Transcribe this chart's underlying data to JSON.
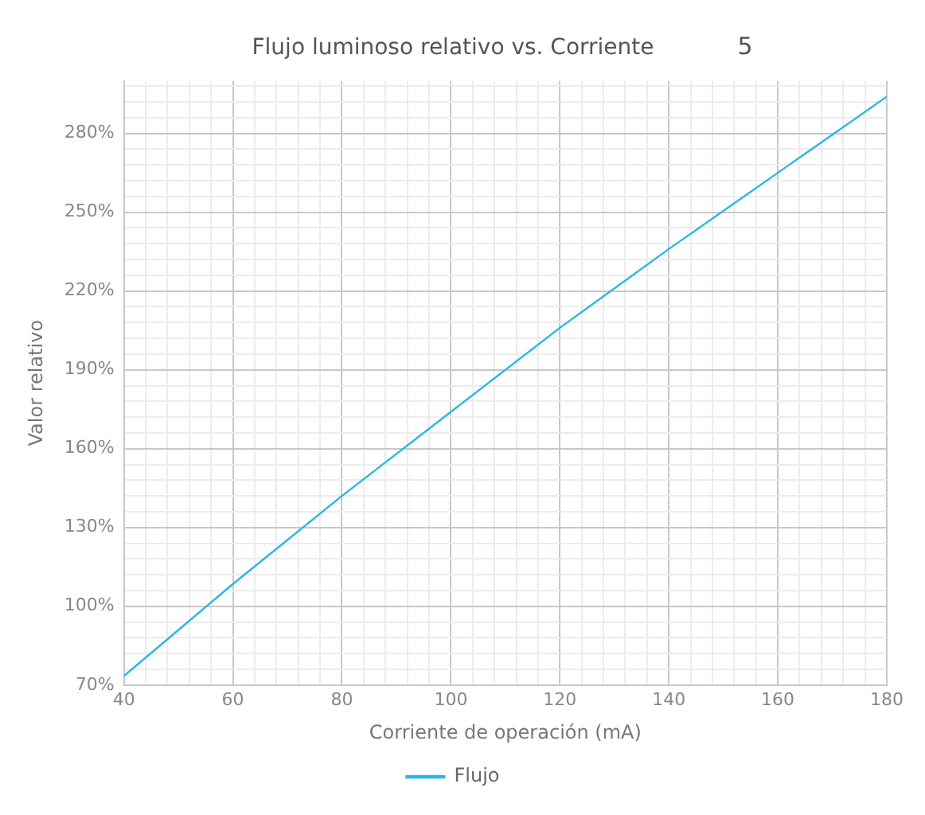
{
  "chart_data": {
    "type": "line",
    "title": "Flujo luminoso relativo vs. Corriente",
    "xlabel": "Corriente de operación (mA)",
    "ylabel": "Valor relativo",
    "annotations": [
      "5"
    ],
    "x": [
      40,
      60,
      80,
      100,
      120,
      140,
      160,
      180
    ],
    "series": [
      {
        "name": "Flujo",
        "color": "#29b6e8",
        "values": [
          73.5,
          108.5,
          142,
          174,
          206,
          236,
          265,
          294
        ]
      }
    ],
    "xlim": [
      40,
      180
    ],
    "xticks": [
      40,
      {
        "value": 44,
        "label": null
      },
      {
        "value": 48,
        "label": null
      },
      {
        "value": 52,
        "label": null
      },
      {
        "value": 56,
        "label": null
      },
      60,
      {
        "value": 64,
        "label": null
      },
      {
        "value": 68,
        "label": null
      },
      {
        "value": 72,
        "label": null
      },
      {
        "value": 76,
        "label": null
      },
      80,
      {
        "value": 84,
        "label": null
      },
      {
        "value": 88,
        "label": null
      },
      {
        "value": 92,
        "label": null
      },
      {
        "value": 96,
        "label": null
      },
      100,
      {
        "value": 104,
        "label": null
      },
      {
        "value": 108,
        "label": null
      },
      {
        "value": 112,
        "label": null
      },
      {
        "value": 116,
        "label": null
      },
      120,
      {
        "value": 124,
        "label": null
      },
      {
        "value": 128,
        "label": null
      },
      {
        "value": 132,
        "label": null
      },
      {
        "value": 136,
        "label": null
      },
      140,
      {
        "value": 144,
        "label": null
      },
      {
        "value": 148,
        "label": null
      },
      {
        "value": 152,
        "label": null
      },
      {
        "value": 156,
        "label": null
      },
      160,
      {
        "value": 164,
        "label": null
      },
      {
        "value": 168,
        "label": null
      },
      {
        "value": 172,
        "label": null
      },
      {
        "value": 176,
        "label": null
      },
      180
    ],
    "ylim": [
      70,
      300
    ],
    "yticks": [
      {
        "value": 70,
        "label": "70%"
      },
      {
        "value": 76,
        "label": null
      },
      {
        "value": 82,
        "label": null
      },
      {
        "value": 88,
        "label": null
      },
      {
        "value": 94,
        "label": null
      },
      {
        "value": 100,
        "label": "100%"
      },
      {
        "value": 106,
        "label": null
      },
      {
        "value": 112,
        "label": null
      },
      {
        "value": 118,
        "label": null
      },
      {
        "value": 124,
        "label": null
      },
      {
        "value": 130,
        "label": "130%"
      },
      {
        "value": 136,
        "label": null
      },
      {
        "value": 142,
        "label": null
      },
      {
        "value": 148,
        "label": null
      },
      {
        "value": 154,
        "label": null
      },
      {
        "value": 160,
        "label": "160%"
      },
      {
        "value": 166,
        "label": null
      },
      {
        "value": 172,
        "label": null
      },
      {
        "value": 178,
        "label": null
      },
      {
        "value": 184,
        "label": null
      },
      {
        "value": 190,
        "label": "190%"
      },
      {
        "value": 196,
        "label": null
      },
      {
        "value": 202,
        "label": null
      },
      {
        "value": 208,
        "label": null
      },
      {
        "value": 214,
        "label": null
      },
      {
        "value": 220,
        "label": "220%"
      },
      {
        "value": 226,
        "label": null
      },
      {
        "value": 232,
        "label": null
      },
      {
        "value": 238,
        "label": null
      },
      {
        "value": 244,
        "label": null
      },
      {
        "value": 250,
        "label": "250%"
      },
      {
        "value": 256,
        "label": null
      },
      {
        "value": 262,
        "label": null
      },
      {
        "value": 268,
        "label": null
      },
      {
        "value": 274,
        "label": null
      },
      {
        "value": 280,
        "label": "280%"
      },
      {
        "value": 286,
        "label": null
      },
      {
        "value": 292,
        "label": null
      },
      {
        "value": 298,
        "label": null
      }
    ],
    "grid": true,
    "legend": "bottom",
    "marker": "none",
    "line_style": "solid"
  }
}
